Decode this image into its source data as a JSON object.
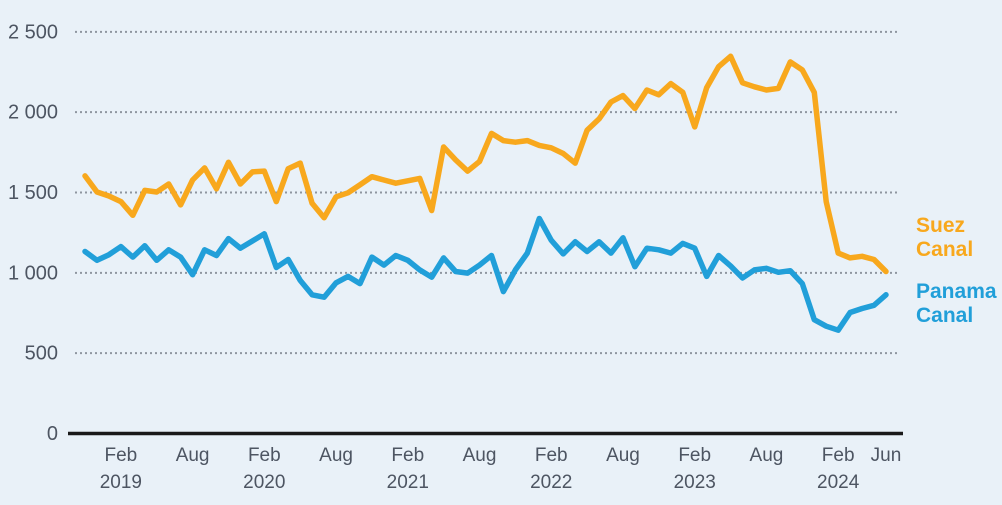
{
  "page": {
    "background_color": "#E9F1F8"
  },
  "chart_data": {
    "type": "line",
    "title": "",
    "unit_hint": "number of transits per month",
    "x": {
      "months": [
        "Nov 2018",
        "Dec 2018",
        "Jan 2019",
        "Feb 2019",
        "Mar 2019",
        "Apr 2019",
        "May 2019",
        "Jun 2019",
        "Jul 2019",
        "Aug 2019",
        "Sep 2019",
        "Oct 2019",
        "Nov 2019",
        "Dec 2019",
        "Jan 2020",
        "Feb 2020",
        "Mar 2020",
        "Apr 2020",
        "May 2020",
        "Jun 2020",
        "Jul 2020",
        "Aug 2020",
        "Sep 2020",
        "Oct 2020",
        "Nov 2020",
        "Dec 2020",
        "Jan 2021",
        "Feb 2021",
        "Mar 2021",
        "Apr 2021",
        "May 2021",
        "Jun 2021",
        "Jul 2021",
        "Aug 2021",
        "Sep 2021",
        "Oct 2021",
        "Nov 2021",
        "Dec 2021",
        "Jan 2022",
        "Feb 2022",
        "Mar 2022",
        "Apr 2022",
        "May 2022",
        "Jun 2022",
        "Jul 2022",
        "Aug 2022",
        "Sep 2022",
        "Oct 2022",
        "Nov 2022",
        "Dec 2022",
        "Jan 2023",
        "Feb 2023",
        "Mar 2023",
        "Apr 2023",
        "May 2023",
        "Jun 2023",
        "Jul 2023",
        "Aug 2023",
        "Sep 2023",
        "Oct 2023",
        "Nov 2023",
        "Dec 2023",
        "Jan 2024",
        "Feb 2024",
        "Mar 2024",
        "Apr 2024",
        "May 2024",
        "Jun 2024"
      ]
    },
    "series": [
      {
        "name": "Suez Canal",
        "color": "#F8A81D",
        "values": [
          1600,
          1500,
          1475,
          1440,
          1355,
          1510,
          1500,
          1550,
          1420,
          1575,
          1650,
          1520,
          1685,
          1550,
          1625,
          1630,
          1440,
          1645,
          1680,
          1430,
          1340,
          1470,
          1495,
          1545,
          1595,
          1575,
          1555,
          1570,
          1585,
          1385,
          1780,
          1700,
          1630,
          1690,
          1865,
          1820,
          1810,
          1820,
          1790,
          1775,
          1740,
          1680,
          1885,
          1955,
          2060,
          2100,
          2020,
          2135,
          2105,
          2175,
          2120,
          1905,
          2150,
          2280,
          2345,
          2180,
          2155,
          2135,
          2145,
          2310,
          2260,
          2120,
          1440,
          1120,
          1090,
          1100,
          1080,
          1005
        ]
      },
      {
        "name": "Panama Canal",
        "color": "#219FD9",
        "values": [
          1130,
          1075,
          1110,
          1160,
          1095,
          1165,
          1075,
          1140,
          1095,
          985,
          1140,
          1105,
          1210,
          1150,
          1195,
          1240,
          1030,
          1080,
          950,
          860,
          845,
          935,
          975,
          930,
          1095,
          1045,
          1105,
          1075,
          1015,
          970,
          1090,
          1005,
          995,
          1045,
          1105,
          880,
          1015,
          1120,
          1335,
          1200,
          1115,
          1190,
          1130,
          1190,
          1120,
          1215,
          1035,
          1150,
          1140,
          1120,
          1180,
          1150,
          975,
          1105,
          1040,
          965,
          1015,
          1025,
          1000,
          1010,
          930,
          705,
          665,
          640,
          750,
          775,
          795,
          860
        ]
      }
    ],
    "y_axis": {
      "range": [
        0,
        2560
      ],
      "gridlines": "dotted",
      "ticks": [
        {
          "value": 0,
          "label": "0"
        },
        {
          "value": 500,
          "label": "500"
        },
        {
          "value": 1000,
          "label": "1 000"
        },
        {
          "value": 1500,
          "label": "1 500"
        },
        {
          "value": 2000,
          "label": "2 000"
        },
        {
          "value": 2500,
          "label": "2 500"
        }
      ]
    },
    "x_axis": {
      "ticks": [
        {
          "index": 3,
          "month": "Feb",
          "year": "2019"
        },
        {
          "index": 9,
          "month": "Aug",
          "year": ""
        },
        {
          "index": 15,
          "month": "Feb",
          "year": "2020"
        },
        {
          "index": 21,
          "month": "Aug",
          "year": ""
        },
        {
          "index": 27,
          "month": "Feb",
          "year": "2021"
        },
        {
          "index": 33,
          "month": "Aug",
          "year": ""
        },
        {
          "index": 39,
          "month": "Feb",
          "year": "2022"
        },
        {
          "index": 45,
          "month": "Aug",
          "year": ""
        },
        {
          "index": 51,
          "month": "Feb",
          "year": "2023"
        },
        {
          "index": 57,
          "month": "Aug",
          "year": ""
        },
        {
          "index": 63,
          "month": "Feb",
          "year": "2024"
        },
        {
          "index": 67,
          "month": "Jun",
          "year": ""
        }
      ]
    },
    "legend": {
      "position": "right",
      "entries": [
        {
          "label": "Suez Canal",
          "color": "#F8A81D"
        },
        {
          "label": "Panama Canal",
          "color": "#219FD9"
        }
      ]
    },
    "colors": {
      "gridline": "#8F96A0",
      "axis_line": "#1A1A1A",
      "tick_text": "#4D5562"
    }
  }
}
